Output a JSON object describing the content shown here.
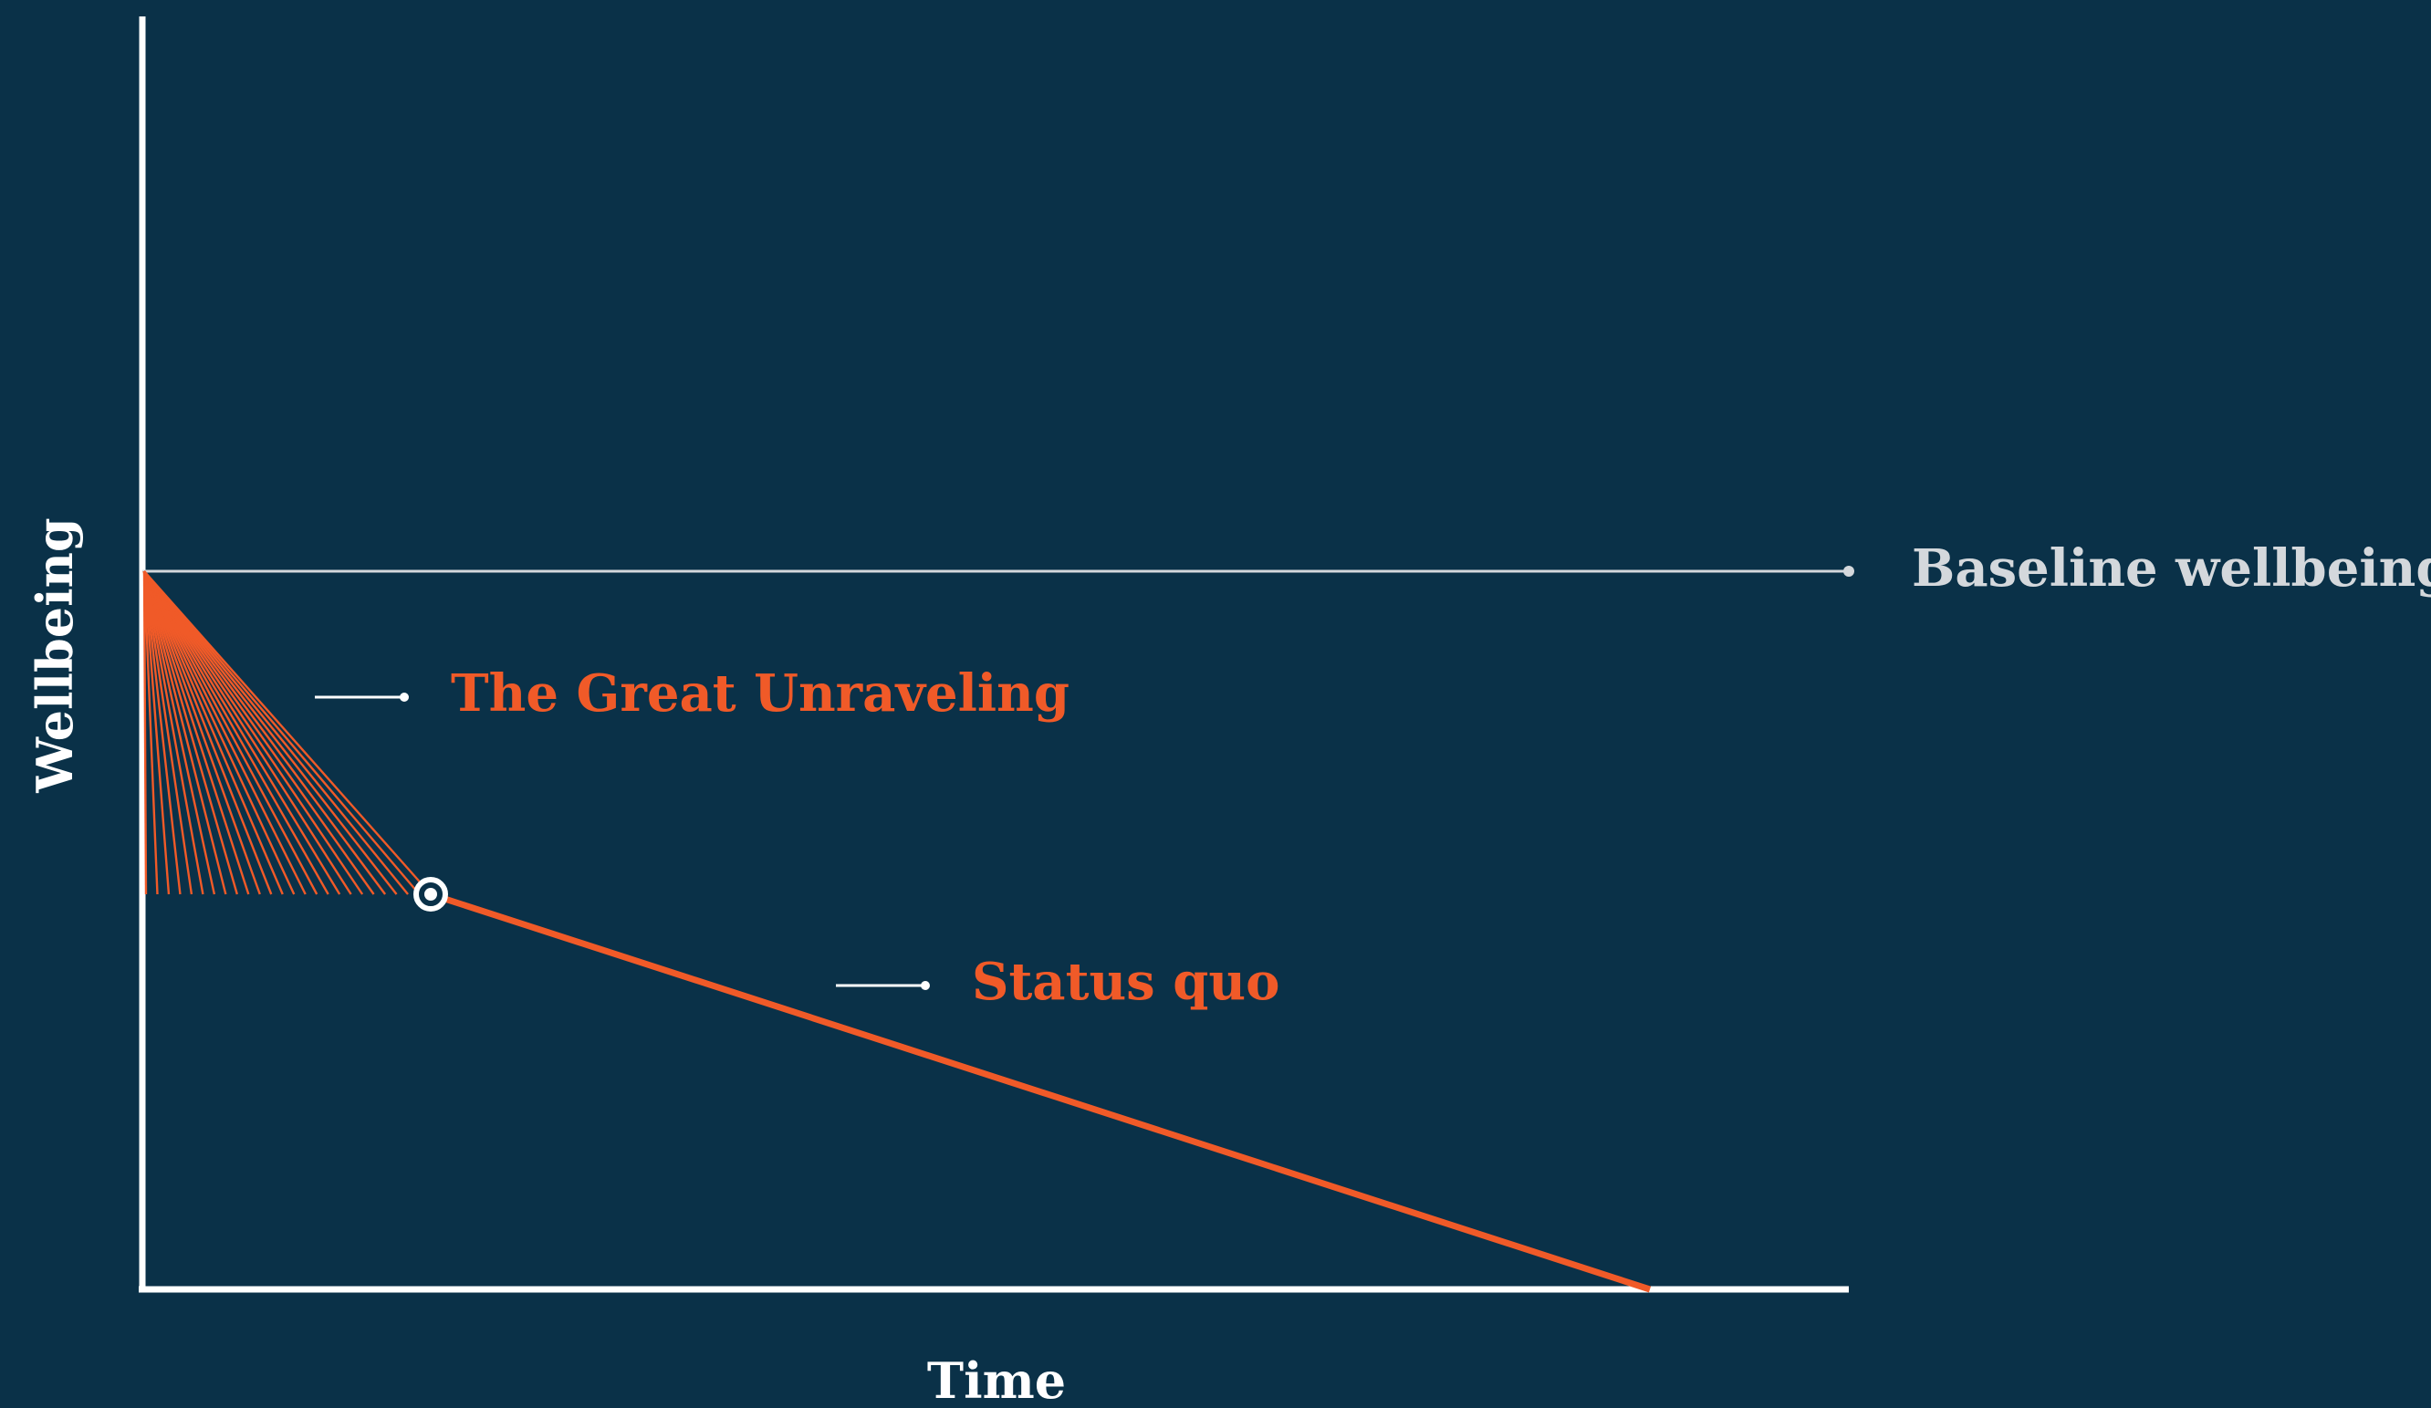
{
  "chart_data": {
    "type": "line",
    "xlabel": "Time",
    "ylabel": "Wellbeing",
    "grid": false,
    "legend": "none",
    "annotations": [
      {
        "id": "baseline",
        "text": "Baseline wellbeing",
        "color": "#d4d8dc"
      },
      {
        "id": "great_unraveling",
        "text": "The Great Unraveling",
        "color": "#f05a28"
      },
      {
        "id": "status_quo",
        "text": "Status quo",
        "color": "#f05a28"
      }
    ]
  },
  "colors": {
    "background": "#0a3148",
    "axis": "#ffffff",
    "accent": "#f05a28",
    "baseline": "#d4d8dc"
  }
}
